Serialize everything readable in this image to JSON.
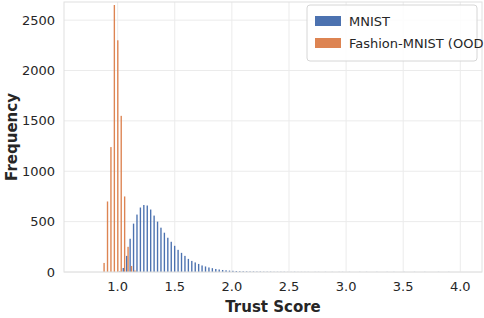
{
  "chart_data": {
    "type": "histogram",
    "x_label": "Trust Score",
    "y_label": "Frequency",
    "bins": [
      0.86,
      0.89,
      0.92,
      0.95,
      0.98,
      1.01,
      1.04,
      1.07,
      1.1,
      1.13,
      1.16,
      1.19,
      1.22,
      1.25,
      1.28,
      1.31,
      1.34,
      1.37,
      1.4,
      1.43,
      1.46,
      1.49,
      1.52,
      1.55,
      1.58,
      1.61,
      1.64,
      1.67,
      1.7,
      1.73,
      1.76,
      1.79,
      1.82,
      1.85,
      1.88,
      1.91,
      1.94,
      1.97,
      2.0,
      2.03,
      2.06,
      2.09,
      2.12,
      2.15,
      2.18,
      2.21,
      2.24,
      2.27,
      2.3,
      2.33,
      2.36,
      2.39,
      2.42,
      2.45,
      2.48,
      2.51,
      2.54,
      2.57,
      2.6,
      2.63,
      2.66,
      2.69,
      2.72,
      2.75,
      2.78,
      2.81,
      2.84,
      2.87,
      2.9,
      2.93,
      2.96,
      2.99,
      3.02,
      3.05,
      3.08,
      3.11,
      3.14,
      3.17,
      3.2,
      3.23,
      3.26,
      3.29,
      3.32,
      3.35,
      3.38,
      3.41,
      3.44,
      3.47,
      3.5,
      3.53,
      3.56,
      3.59,
      3.62,
      3.65,
      3.68,
      3.71,
      3.74,
      3.77,
      3.8,
      3.83,
      3.86,
      3.89,
      3.92
    ],
    "series": [
      {
        "name": "MNIST",
        "color": "#4c72b0",
        "values": [
          0,
          0,
          0,
          0,
          0,
          5,
          40,
          160,
          330,
          480,
          570,
          640,
          665,
          660,
          620,
          560,
          500,
          440,
          390,
          340,
          300,
          260,
          220,
          190,
          160,
          130,
          110,
          95,
          80,
          65,
          55,
          45,
          38,
          30,
          25,
          20,
          17,
          14,
          12,
          10,
          8,
          7,
          6,
          5,
          5,
          4,
          4,
          3,
          3,
          3,
          2,
          2,
          2,
          2,
          1,
          1,
          2,
          1,
          1,
          1,
          1,
          0,
          1,
          1,
          0,
          1,
          0,
          1,
          0,
          1,
          1,
          0,
          1,
          0,
          0,
          1,
          0,
          1,
          0,
          0,
          1,
          0,
          0,
          1,
          0,
          1,
          0,
          0,
          1,
          0,
          0,
          1,
          0,
          0,
          1,
          0,
          0,
          0,
          1,
          0,
          0,
          1
        ]
      },
      {
        "name": "Fashion-MNIST (OOD)",
        "color": "#dd8452",
        "values": [
          90,
          700,
          1240,
          2650,
          2300,
          1550,
          750,
          250,
          60,
          15,
          0,
          0,
          0,
          0,
          0,
          0,
          0,
          0,
          0,
          0,
          0,
          0,
          0,
          0,
          0,
          0,
          0,
          0,
          0,
          0,
          0,
          0,
          0,
          0,
          0,
          0,
          0,
          0,
          0,
          0,
          0,
          0,
          0,
          0,
          0,
          0,
          0,
          0,
          0,
          0,
          0,
          0,
          0,
          0,
          0,
          0,
          0,
          0,
          0,
          0,
          0,
          0,
          0,
          0,
          0,
          0,
          0,
          0,
          0,
          0,
          0,
          0,
          0,
          0,
          0,
          0,
          0,
          0,
          0,
          0,
          0,
          0,
          0,
          0,
          0,
          0,
          0,
          0,
          0,
          0,
          0,
          0,
          0,
          0,
          0,
          0,
          0,
          0,
          0,
          0,
          0,
          0
        ]
      }
    ],
    "xlim": [
      0.53,
      4.19
    ],
    "xticks": [
      {
        "value": 1,
        "label": "1.0"
      },
      {
        "value": 1.5,
        "label": "1.5"
      },
      {
        "value": 2,
        "label": "2.0"
      },
      {
        "value": 2.5,
        "label": "2.5"
      },
      {
        "value": 3,
        "label": "3.0"
      },
      {
        "value": 3.5,
        "label": "3.5"
      },
      {
        "value": 4,
        "label": "4.0"
      }
    ],
    "ylim": [
      0,
      2680
    ],
    "yticks": [
      0,
      500,
      1000,
      1500,
      2000,
      2500
    ],
    "grid": true,
    "legend": "upper right"
  }
}
